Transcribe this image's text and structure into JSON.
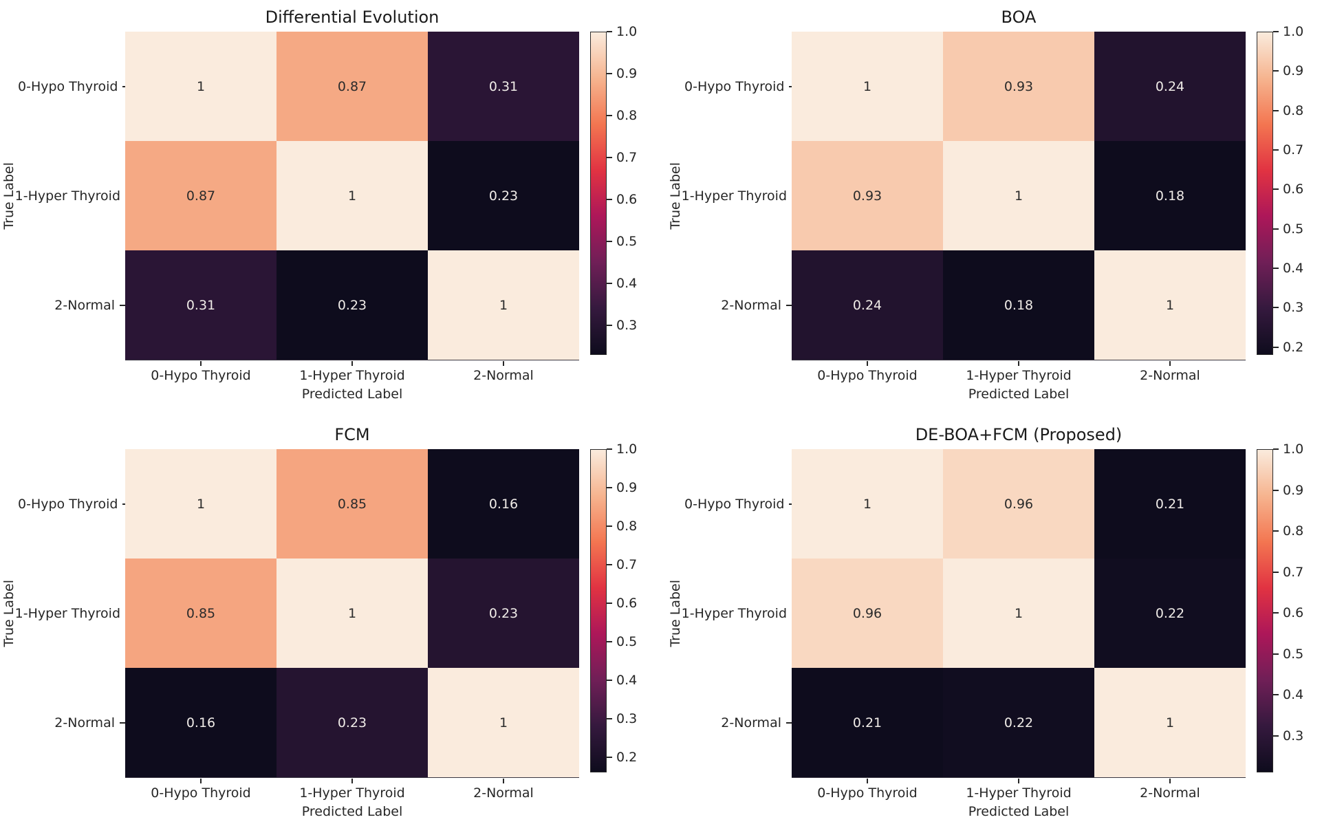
{
  "figure": {
    "background": "#ffffff",
    "axis_text_color": "#262626"
  },
  "annotation_colors": {
    "on_light": "#2b2b2b",
    "on_dark": "#f0ece8"
  },
  "colormap": {
    "name": "rocket",
    "anchors": [
      [
        0.0,
        "#0E0C1D"
      ],
      [
        0.143,
        "#35193E"
      ],
      [
        0.286,
        "#701F57"
      ],
      [
        0.429,
        "#AD1759"
      ],
      [
        0.571,
        "#E13342"
      ],
      [
        0.714,
        "#F37651"
      ],
      [
        0.857,
        "#F6B48F"
      ],
      [
        1.0,
        "#FAEBDD"
      ]
    ]
  },
  "chart_data": [
    {
      "type": "heatmap",
      "title": "Differential Evolution",
      "xlabel": "Predicted Label",
      "ylabel": "True Label",
      "categories": [
        "0-Hypo Thyroid",
        "1-Hyper Thyroid",
        "2-Normal"
      ],
      "matrix": [
        [
          1,
          0.87,
          0.31
        ],
        [
          0.87,
          1,
          0.23
        ],
        [
          0.31,
          0.23,
          1
        ]
      ],
      "vmin": 0.23,
      "vmax": 1.0,
      "colorbar_ticks": [
        "1.0",
        "0.9",
        "0.8",
        "0.7",
        "0.6",
        "0.5",
        "0.4",
        "0.3"
      ],
      "colorbar_position": "right",
      "grid": false
    },
    {
      "type": "heatmap",
      "title": "BOA",
      "xlabel": "Predicted Label",
      "ylabel": "True Label",
      "categories": [
        "0-Hypo Thyroid",
        "1-Hyper Thyroid",
        "2-Normal"
      ],
      "matrix": [
        [
          1,
          0.93,
          0.24
        ],
        [
          0.93,
          1,
          0.18
        ],
        [
          0.24,
          0.18,
          1
        ]
      ],
      "vmin": 0.18,
      "vmax": 1.0,
      "colorbar_ticks": [
        "1.0",
        "0.9",
        "0.8",
        "0.7",
        "0.6",
        "0.5",
        "0.4",
        "0.3",
        "0.2"
      ],
      "colorbar_position": "right",
      "grid": false
    },
    {
      "type": "heatmap",
      "title": "FCM",
      "xlabel": "Predicted Label",
      "ylabel": "True Label",
      "categories": [
        "0-Hypo Thyroid",
        "1-Hyper Thyroid",
        "2-Normal"
      ],
      "matrix": [
        [
          1,
          0.85,
          0.16
        ],
        [
          0.85,
          1,
          0.23
        ],
        [
          0.16,
          0.23,
          1
        ]
      ],
      "vmin": 0.16,
      "vmax": 1.0,
      "colorbar_ticks": [
        "1.0",
        "0.9",
        "0.8",
        "0.7",
        "0.6",
        "0.5",
        "0.4",
        "0.3",
        "0.2"
      ],
      "colorbar_position": "right",
      "grid": false
    },
    {
      "type": "heatmap",
      "title": "DE-BOA+FCM (Proposed)",
      "xlabel": "Predicted Label",
      "ylabel": "True Label",
      "categories": [
        "0-Hypo Thyroid",
        "1-Hyper Thyroid",
        "2-Normal"
      ],
      "matrix": [
        [
          1,
          0.96,
          0.21
        ],
        [
          0.96,
          1,
          0.22
        ],
        [
          0.21,
          0.22,
          1
        ]
      ],
      "vmin": 0.21,
      "vmax": 1.0,
      "colorbar_ticks": [
        "1.0",
        "0.9",
        "0.8",
        "0.7",
        "0.6",
        "0.5",
        "0.4",
        "0.3"
      ],
      "colorbar_position": "right",
      "grid": false
    }
  ]
}
